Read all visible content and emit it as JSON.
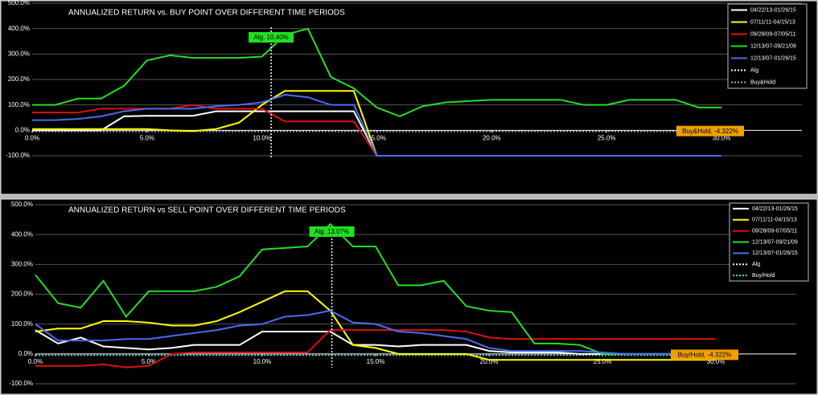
{
  "chart_data": [
    {
      "type": "line",
      "title": "ANNUALIZED RETURN vs. BUY POINT OVER DIFFERENT TIME PERIODS",
      "x": [
        0,
        1,
        2,
        3,
        4,
        5,
        6,
        7,
        8,
        9,
        10,
        11,
        12,
        13,
        14,
        15,
        16,
        17,
        18,
        19,
        20,
        21,
        22,
        23,
        24,
        25,
        26,
        27,
        28,
        29,
        30
      ],
      "xlim": [
        0,
        30
      ],
      "ylim": [
        -100,
        500
      ],
      "grid": true,
      "legend": "upper right",
      "xticks": [
        {
          "value": 0,
          "label": "0.0%"
        },
        {
          "value": 5,
          "label": "5.0%"
        },
        {
          "value": 10,
          "label": "10.0%"
        },
        {
          "value": 15,
          "label": "15.0%"
        },
        {
          "value": 20,
          "label": "20.0%"
        },
        {
          "value": 25,
          "label": "25.0%"
        },
        {
          "value": 30,
          "label": "30.0%"
        }
      ],
      "yticks": [
        {
          "value": 500,
          "label": "500.0%"
        },
        {
          "value": 400,
          "label": "400.0%"
        },
        {
          "value": 300,
          "label": "300.0%"
        },
        {
          "value": 200,
          "label": "200.0%"
        },
        {
          "value": 100,
          "label": "100.0%"
        },
        {
          "value": 0,
          "label": "0.0%"
        },
        {
          "value": -100,
          "label": "-100.0%"
        }
      ],
      "series": [
        {
          "name": "04/22/13-01/26/15",
          "color": "#ffffff",
          "values": [
            0,
            0,
            0,
            0,
            55,
            57,
            57,
            57,
            75,
            75,
            75,
            75,
            75,
            75,
            75,
            -100,
            null,
            null,
            null,
            null,
            null,
            null,
            null,
            null,
            null,
            null,
            null,
            null,
            null,
            null,
            null
          ]
        },
        {
          "name": "07/11/11-04/15/13",
          "color": "#ffff00",
          "values": [
            5,
            5,
            5,
            5,
            5,
            5,
            0,
            -3,
            5,
            30,
            100,
            155,
            155,
            155,
            155,
            -100,
            null,
            null,
            null,
            null,
            null,
            null,
            null,
            null,
            null,
            null,
            null,
            null,
            null,
            null,
            null
          ]
        },
        {
          "name": "09/28/09-07/05/11",
          "color": "#e01010",
          "values": [
            70,
            70,
            70,
            85,
            85,
            85,
            85,
            100,
            85,
            85,
            85,
            35,
            35,
            35,
            35,
            -100,
            null,
            null,
            null,
            null,
            null,
            null,
            null,
            null,
            null,
            null,
            null,
            null,
            null,
            null,
            null
          ]
        },
        {
          "name": "12/13/07-09/21/09",
          "color": "#22e022",
          "values": [
            100,
            100,
            125,
            125,
            175,
            275,
            295,
            285,
            285,
            285,
            290,
            375,
            400,
            210,
            165,
            90,
            55,
            95,
            110,
            115,
            120,
            120,
            120,
            120,
            100,
            100,
            120,
            120,
            120,
            90,
            90
          ]
        },
        {
          "name": "12/13/07-01/26/15",
          "color": "#4a6cf0",
          "values": [
            40,
            40,
            45,
            55,
            75,
            85,
            85,
            85,
            95,
            100,
            110,
            140,
            130,
            100,
            100,
            -100,
            -100,
            -100,
            -100,
            -100,
            -100,
            -100,
            -100,
            -100,
            -100,
            -100,
            -100,
            -100,
            -100,
            -100,
            -100
          ]
        }
      ],
      "alg": {
        "name": "Alg",
        "x": 10.4,
        "label": "Alg. 10.40%",
        "color": "#ffffff"
      },
      "hold": {
        "name": "Buy&Hold",
        "y": -4.322,
        "label": "Buy&Hold, -4.322%",
        "color": "#9aa6c8"
      }
    },
    {
      "type": "line",
      "title": "ANNUALIZED RETURN vs SELL POINT OVER DIFFERENT TIME PERIODS",
      "x": [
        0,
        1,
        2,
        3,
        4,
        5,
        6,
        7,
        8,
        9,
        10,
        11,
        12,
        13,
        14,
        15,
        16,
        17,
        18,
        19,
        20,
        21,
        22,
        23,
        24,
        25,
        26,
        27,
        28,
        29,
        30
      ],
      "xlim": [
        0,
        30
      ],
      "ylim": [
        -100,
        500
      ],
      "grid": true,
      "legend": "upper right",
      "xticks": [
        {
          "value": 0,
          "label": "0.0%"
        },
        {
          "value": 5,
          "label": "5.0%"
        },
        {
          "value": 10,
          "label": "10.0%"
        },
        {
          "value": 15,
          "label": "15.0%"
        },
        {
          "value": 20,
          "label": "20.0%"
        },
        {
          "value": 25,
          "label": "25.0%"
        },
        {
          "value": 30,
          "label": "30.0%"
        }
      ],
      "yticks": [
        {
          "value": 500,
          "label": "500.0%"
        },
        {
          "value": 400,
          "label": "400.0%"
        },
        {
          "value": 300,
          "label": "300.0%"
        },
        {
          "value": 200,
          "label": "200.0%"
        },
        {
          "value": 100,
          "label": "100.0%"
        },
        {
          "value": 0,
          "label": "0.0%"
        },
        {
          "value": -100,
          "label": "-100.0%"
        }
      ],
      "series": [
        {
          "name": "04/22/13-01/26/15",
          "color": "#ffffff",
          "values": [
            80,
            35,
            55,
            25,
            20,
            15,
            20,
            30,
            30,
            30,
            75,
            75,
            75,
            75,
            30,
            30,
            25,
            30,
            30,
            30,
            10,
            5,
            5,
            5,
            0,
            0,
            0,
            0,
            0,
            0,
            0
          ]
        },
        {
          "name": "07/11/11-04/15/13",
          "color": "#ffff00",
          "values": [
            75,
            85,
            85,
            110,
            110,
            105,
            95,
            95,
            110,
            140,
            175,
            210,
            210,
            145,
            30,
            20,
            0,
            0,
            0,
            0,
            -20,
            -20,
            -20,
            -20,
            -20,
            -20,
            -20,
            -20,
            -20,
            -20,
            -20
          ]
        },
        {
          "name": "09/28/09-07/05/11",
          "color": "#e01010",
          "values": [
            -40,
            -40,
            -40,
            -35,
            -45,
            -40,
            0,
            5,
            5,
            5,
            5,
            5,
            5,
            80,
            80,
            80,
            80,
            80,
            80,
            75,
            55,
            50,
            50,
            50,
            50,
            50,
            50,
            50,
            50,
            50,
            50
          ]
        },
        {
          "name": "12/13/07-09/21/09",
          "color": "#22e022",
          "values": [
            265,
            170,
            155,
            245,
            125,
            210,
            210,
            210,
            225,
            260,
            350,
            355,
            360,
            435,
            360,
            360,
            230,
            230,
            245,
            160,
            145,
            140,
            35,
            35,
            30,
            0,
            0,
            0,
            0,
            0,
            0
          ]
        },
        {
          "name": "12/13/07-01/26/15",
          "color": "#4a6cf0",
          "values": [
            100,
            45,
            45,
            45,
            50,
            50,
            60,
            70,
            80,
            95,
            100,
            125,
            130,
            145,
            105,
            100,
            75,
            70,
            60,
            50,
            20,
            10,
            10,
            10,
            10,
            5,
            0,
            0,
            0,
            0,
            0
          ]
        }
      ],
      "alg": {
        "name": "Alg",
        "x": 13.07,
        "label": "Alg. 13.07%",
        "color": "#ffffff"
      },
      "hold": {
        "name": "Buy/Hold",
        "y": -4.322,
        "label": "Buy/Hold, -4.322%",
        "color": "#40e0e0"
      }
    }
  ]
}
